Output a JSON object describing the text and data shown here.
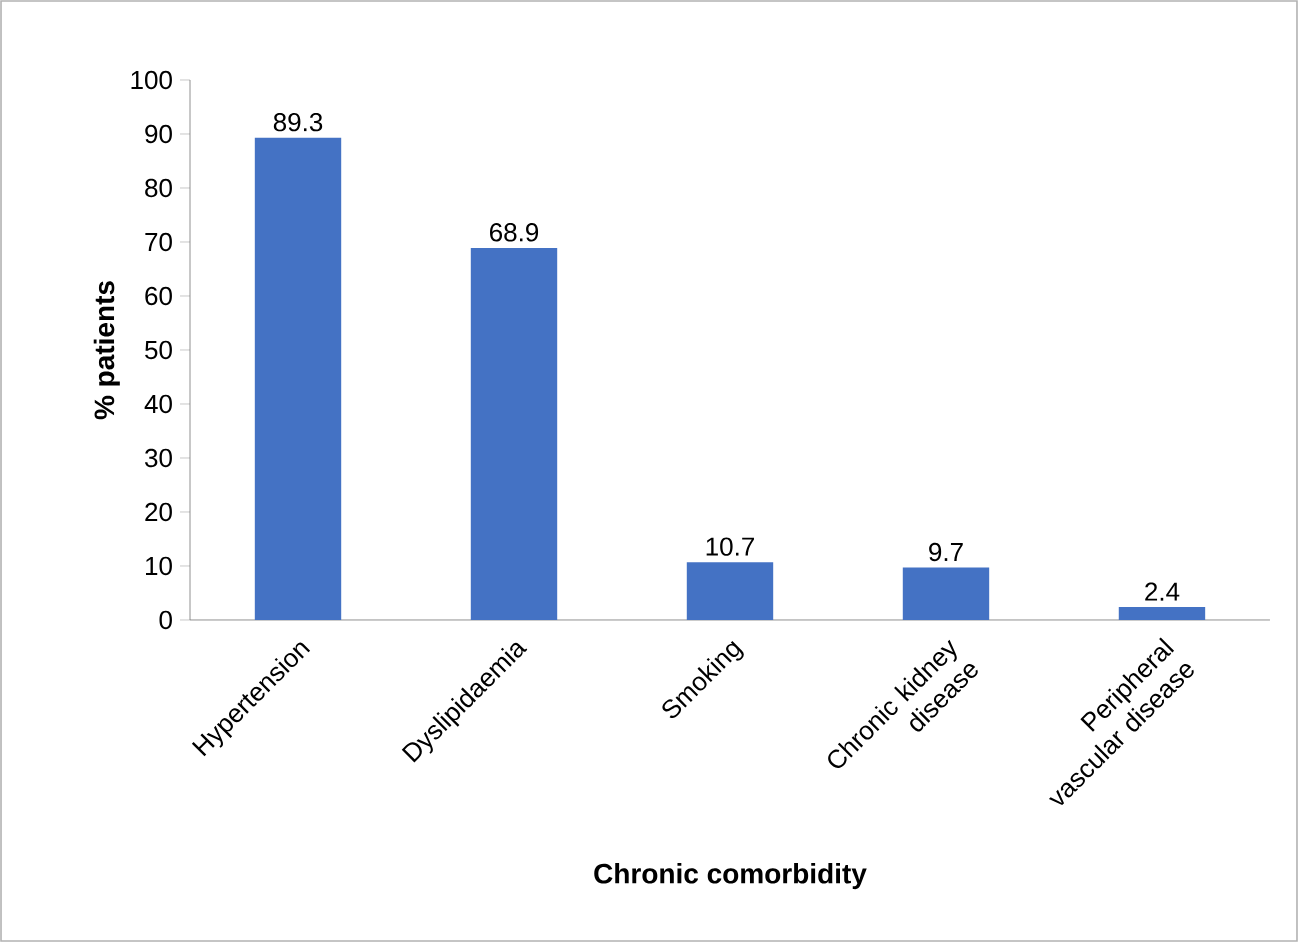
{
  "chart_data": {
    "type": "bar",
    "xlabel": "Chronic comorbidity",
    "ylabel": "% patients",
    "categories": [
      "Hypertension",
      "Dyslipidaemia",
      "Smoking",
      "Chronic kidney disease",
      "Peripheral vascular disease"
    ],
    "values": [
      89.3,
      68.9,
      10.7,
      9.7,
      2.4
    ],
    "color": "#4472c4",
    "data_labels": true,
    "grid": false,
    "ylim": [
      0,
      100
    ],
    "yticks": [
      0,
      10,
      20,
      30,
      40,
      50,
      60,
      70,
      80,
      90,
      100
    ]
  }
}
